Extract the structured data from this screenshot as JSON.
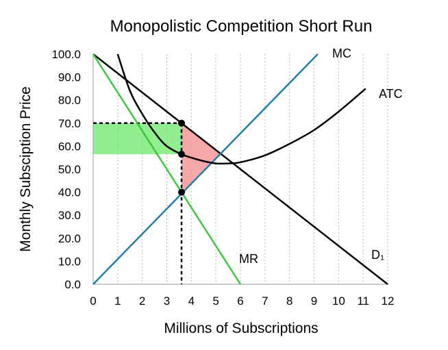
{
  "chart_data": {
    "type": "line",
    "title": "Monopolistic Competition Short Run",
    "xlabel": "Millions of Subscriptions",
    "ylabel": "Monthly Subsciption Price",
    "xlim": [
      0,
      12
    ],
    "ylim": [
      0,
      100
    ],
    "x_ticks": [
      "0",
      "1",
      "2",
      "3",
      "4",
      "5",
      "6",
      "7",
      "8",
      "9",
      "10",
      "11",
      "12"
    ],
    "y_ticks": [
      "0.0",
      "10.0",
      "20.0",
      "30.0",
      "40.0",
      "50.0",
      "60.0",
      "70.0",
      "80.0",
      "90.0",
      "100.0"
    ],
    "grid": "vertical dotted",
    "series": [
      {
        "name": "D₁",
        "color": "#000000",
        "x": [
          0,
          12
        ],
        "y": [
          100,
          0
        ]
      },
      {
        "name": "MR",
        "color": "#3cc73c",
        "x": [
          0,
          6
        ],
        "y": [
          100,
          0
        ]
      },
      {
        "name": "MC",
        "color": "#1f7fa8",
        "x": [
          0,
          9.15
        ],
        "y": [
          0,
          100
        ]
      },
      {
        "name": "ATC",
        "color": "#000000",
        "x": [
          1.0,
          1.5,
          2.0,
          2.5,
          3.0,
          3.6,
          4.0,
          4.5,
          5.0,
          5.5,
          6.0,
          7.0,
          8.0,
          9.0,
          10.0,
          11.1
        ],
        "y": [
          100,
          84,
          74,
          66,
          60,
          56.5,
          55,
          53.5,
          52.5,
          52.5,
          53,
          56,
          61,
          67,
          75,
          85
        ]
      }
    ],
    "points": [
      {
        "x": 3.6,
        "y": 70
      },
      {
        "x": 3.6,
        "y": 56.5
      },
      {
        "x": 3.6,
        "y": 40
      }
    ],
    "guides": {
      "quantity": 3.6,
      "price": 70
    },
    "shaded_regions": [
      {
        "name": "profit",
        "color": "#90ee90",
        "polygon": [
          [
            0,
            70
          ],
          [
            3.6,
            70
          ],
          [
            3.6,
            56.5
          ],
          [
            0,
            56.5
          ]
        ]
      },
      {
        "name": "deadweight-loss",
        "color": "#f7a7a7",
        "polygon": [
          [
            3.6,
            70
          ],
          [
            5.2,
            56.7
          ],
          [
            3.6,
            40
          ]
        ]
      }
    ]
  }
}
